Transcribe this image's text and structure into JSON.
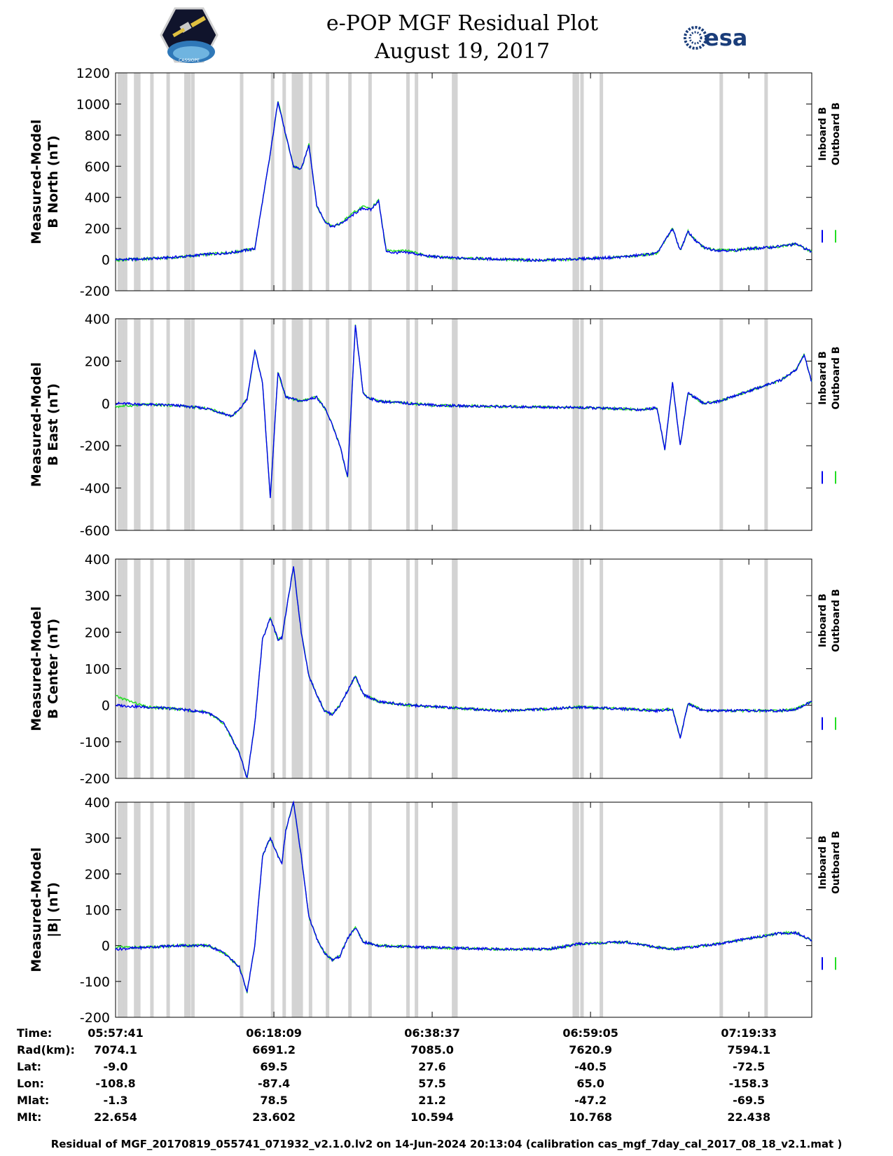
{
  "header": {
    "title_line1": "e-POP MGF Residual Plot",
    "title_line2": "August 19, 2017",
    "logo_left_text": "CASSIOPE",
    "logo_right_text": "esa"
  },
  "colors": {
    "inboard": "#0000ee",
    "outboard": "#22dd22",
    "gap": "#d3d3d3"
  },
  "chart_data": [
    {
      "type": "line",
      "ylabel_line1": "Measured-Model",
      "ylabel_line2": "B North (nT)",
      "ylim": [
        -200,
        1200
      ],
      "yticks": [
        "1200",
        "1000",
        "800",
        "600",
        "400",
        "200",
        "0",
        "-200"
      ],
      "ytick_values": [
        1200,
        1000,
        800,
        600,
        400,
        200,
        0,
        -200
      ],
      "legend": [
        "Inboard B",
        "Outboard B"
      ],
      "x_minutes": [
        0,
        3,
        6,
        9,
        12,
        15,
        18,
        20,
        21,
        22,
        23,
        24,
        25,
        26,
        27,
        28,
        29,
        30,
        31,
        32,
        33,
        34,
        35,
        36,
        38,
        40,
        42,
        44,
        46,
        48,
        50,
        55,
        60,
        65,
        70,
        72,
        73,
        74,
        75,
        76,
        77,
        78,
        80,
        82,
        85,
        88,
        90
      ],
      "series": [
        {
          "name": "Inboard B",
          "values": [
            0,
            3,
            10,
            20,
            35,
            45,
            70,
            680,
            1020,
            800,
            600,
            580,
            740,
            350,
            250,
            210,
            230,
            260,
            300,
            330,
            320,
            380,
            50,
            45,
            45,
            25,
            15,
            10,
            8,
            5,
            2,
            -5,
            5,
            15,
            40,
            200,
            60,
            180,
            120,
            80,
            65,
            60,
            60,
            70,
            80,
            100,
            50
          ]
        },
        {
          "name": "Outboard B",
          "values": [
            -3,
            3,
            10,
            20,
            35,
            45,
            70,
            680,
            1020,
            800,
            600,
            580,
            740,
            350,
            250,
            210,
            230,
            270,
            310,
            340,
            330,
            380,
            60,
            55,
            55,
            25,
            15,
            10,
            8,
            5,
            2,
            -5,
            5,
            15,
            40,
            200,
            60,
            180,
            120,
            80,
            65,
            60,
            60,
            70,
            80,
            100,
            50
          ]
        }
      ]
    },
    {
      "type": "line",
      "ylabel_line1": "Measured-Model",
      "ylabel_line2": "B East (nT)",
      "ylim": [
        -600,
        400
      ],
      "yticks": [
        "400",
        "200",
        "0",
        "-200",
        "-400",
        "-600"
      ],
      "ytick_values": [
        400,
        200,
        0,
        -200,
        -400,
        -600
      ],
      "legend": [
        "Inboard B",
        "Outboard B"
      ],
      "x_minutes": [
        0,
        4,
        8,
        12,
        15,
        16,
        17,
        18,
        19,
        20,
        21,
        22,
        23,
        24,
        25,
        26,
        27,
        28,
        29,
        30,
        31,
        32,
        32.5,
        34,
        38,
        42,
        50,
        60,
        65,
        68,
        70,
        71,
        72,
        73,
        74,
        76,
        78,
        82,
        86,
        88,
        89,
        90
      ],
      "series": [
        {
          "name": "Inboard B",
          "values": [
            0,
            -5,
            -10,
            -25,
            -60,
            -30,
            20,
            250,
            100,
            -450,
            150,
            30,
            20,
            10,
            20,
            30,
            -20,
            -100,
            -200,
            -350,
            370,
            50,
            30,
            10,
            0,
            -10,
            -15,
            -20,
            -25,
            -30,
            -20,
            -220,
            100,
            -200,
            50,
            0,
            10,
            60,
            110,
            160,
            230,
            100
          ]
        },
        {
          "name": "Outboard B",
          "values": [
            -15,
            -5,
            -10,
            -25,
            -60,
            -30,
            20,
            250,
            100,
            -450,
            150,
            30,
            20,
            10,
            20,
            30,
            -20,
            -100,
            -200,
            -350,
            370,
            50,
            30,
            10,
            0,
            -10,
            -15,
            -20,
            -25,
            -30,
            -20,
            -220,
            100,
            -200,
            50,
            0,
            10,
            60,
            110,
            160,
            230,
            100
          ]
        }
      ]
    },
    {
      "type": "line",
      "ylabel_line1": "Measured-Model",
      "ylabel_line2": "B Center (nT)",
      "ylim": [
        -200,
        400
      ],
      "yticks": [
        "400",
        "300",
        "200",
        "100",
        "0",
        "-100",
        "-200"
      ],
      "ytick_values": [
        400,
        300,
        200,
        100,
        0,
        -100,
        -200
      ],
      "legend": [
        "Inboard B",
        "Outboard B"
      ],
      "x_minutes": [
        0,
        4,
        8,
        12,
        14,
        16,
        17,
        18,
        19,
        20,
        21,
        21.5,
        22,
        23,
        24,
        25,
        26,
        27,
        28,
        29,
        30,
        31,
        32,
        34,
        38,
        42,
        46,
        50,
        56,
        60,
        66,
        70,
        72,
        73,
        74,
        76,
        80,
        84,
        86,
        88,
        90
      ],
      "series": [
        {
          "name": "Inboard B",
          "values": [
            0,
            -5,
            -10,
            -20,
            -50,
            -130,
            -200,
            -50,
            180,
            240,
            180,
            185,
            250,
            380,
            200,
            80,
            30,
            -15,
            -25,
            0,
            40,
            80,
            30,
            10,
            0,
            -5,
            -10,
            -15,
            -10,
            -5,
            -10,
            -15,
            -10,
            -90,
            5,
            -15,
            -15,
            -15,
            -15,
            -10,
            10
          ]
        },
        {
          "name": "Outboard B",
          "values": [
            25,
            -5,
            -10,
            -20,
            -50,
            -130,
            -200,
            -50,
            180,
            240,
            180,
            185,
            250,
            380,
            200,
            80,
            30,
            -15,
            -25,
            0,
            40,
            80,
            30,
            10,
            0,
            -5,
            -10,
            -15,
            -10,
            -5,
            -10,
            -15,
            -10,
            -90,
            5,
            -15,
            -15,
            -15,
            -15,
            -10,
            10
          ]
        }
      ]
    },
    {
      "type": "line",
      "ylabel_line1": "Measured-Model",
      "ylabel_line2": "|B| (nT)",
      "ylim": [
        -200,
        400
      ],
      "yticks": [
        "400",
        "300",
        "200",
        "100",
        "0",
        "-100",
        "-200"
      ],
      "ytick_values": [
        400,
        300,
        200,
        100,
        0,
        -100,
        -200
      ],
      "legend": [
        "Inboard B",
        "Outboard B"
      ],
      "x_minutes": [
        0,
        4,
        8,
        12,
        14,
        16,
        17,
        18,
        19,
        20,
        21,
        21.5,
        22,
        23,
        24,
        25,
        26,
        27,
        28,
        29,
        30,
        31,
        32,
        34,
        40,
        50,
        56,
        60,
        66,
        70,
        72,
        74,
        78,
        82,
        86,
        88,
        90
      ],
      "series": [
        {
          "name": "Inboard B",
          "values": [
            -10,
            -5,
            0,
            0,
            -20,
            -60,
            -130,
            0,
            250,
            300,
            250,
            230,
            320,
            400,
            250,
            80,
            20,
            -20,
            -40,
            -30,
            20,
            50,
            10,
            0,
            -5,
            -10,
            -10,
            5,
            10,
            -5,
            -10,
            -5,
            5,
            20,
            35,
            35,
            15
          ]
        },
        {
          "name": "Outboard B",
          "values": [
            -5,
            -5,
            0,
            0,
            -20,
            -60,
            -130,
            0,
            250,
            300,
            250,
            230,
            320,
            400,
            250,
            80,
            20,
            -20,
            -40,
            -30,
            20,
            50,
            10,
            0,
            -5,
            -10,
            -10,
            5,
            10,
            -5,
            -10,
            -5,
            5,
            20,
            35,
            35,
            15
          ]
        }
      ]
    }
  ],
  "gaps_minutes": [
    0.5,
    0.9,
    1.3,
    2.6,
    3.0,
    4.7,
    6.8,
    9.1,
    9.5,
    10.0,
    16.3,
    20.3,
    21.8,
    23.0,
    23.4,
    23.7,
    24.0,
    25.2,
    27.4,
    30.3,
    32.9,
    37.8,
    38.9,
    43.7,
    44.0,
    59.3,
    59.7,
    60.3,
    62.8,
    78.3,
    84.1
  ],
  "xaxis": {
    "tick_minutes": [
      0,
      20.47,
      40.93,
      61.4,
      81.87
    ],
    "xlim_minutes": [
      0,
      90
    ]
  },
  "info": {
    "row_labels": [
      "Time:",
      "Rad(km):",
      "Lat:",
      "Lon:",
      "Mlat:",
      "Mlt:"
    ],
    "columns": [
      [
        "05:57:41",
        "7074.1",
        "-9.0",
        "-108.8",
        "-1.3",
        "22.654"
      ],
      [
        "06:18:09",
        "6691.2",
        "69.5",
        "-87.4",
        "78.5",
        "23.602"
      ],
      [
        "06:38:37",
        "7085.0",
        "27.6",
        "57.5",
        "21.2",
        "10.594"
      ],
      [
        "06:59:05",
        "7620.9",
        "-40.5",
        "65.0",
        "-47.2",
        "10.768"
      ],
      [
        "07:19:33",
        "7594.1",
        "-72.5",
        "-158.3",
        "-69.5",
        "22.438"
      ]
    ]
  },
  "footer": "Residual of MGF_20170819_055741_071932_v2.1.0.lv2 on 14-Jun-2024 20:13:04 (calibration cas_mgf_7day_cal_2017_08_18_v2.1.mat )"
}
